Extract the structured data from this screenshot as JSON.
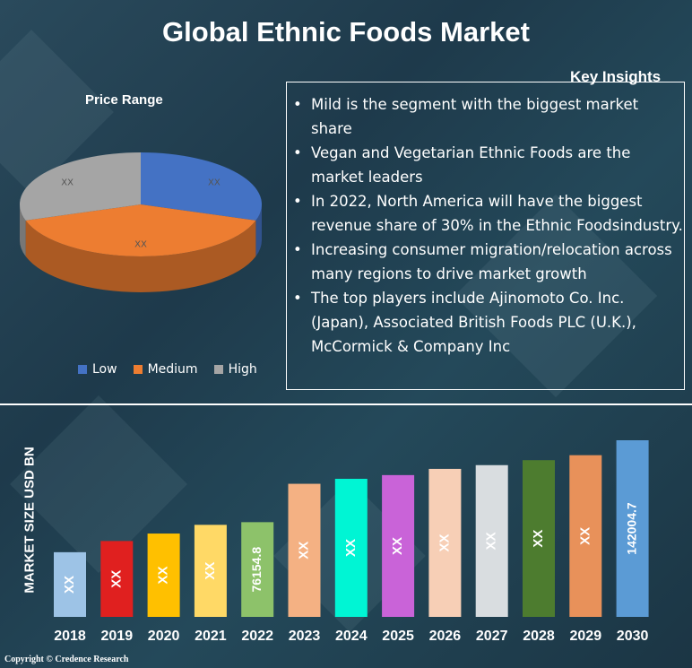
{
  "title": "Global Ethnic Foods Market",
  "copyright": "Copyright © Credence Research",
  "colors": {
    "low": "#4472c4",
    "medium": "#ed7d31",
    "high": "#a5a5a5"
  },
  "insights": {
    "title": "Key Insights",
    "items": [
      "Mild is the segment with the biggest market share",
      "Vegan and Vegetarian Ethnic Foods are the market leaders",
      "In 2022, North America will have the biggest revenue share of 30% in the Ethnic Foodsindustry.",
      "Increasing consumer migration/relocation across many regions to drive market growth",
      "The top players include Ajinomoto Co. Inc. (Japan), Associated British Foods PLC (U.K.), McCormick & Company Inc"
    ]
  },
  "chart_data": [
    {
      "type": "pie",
      "title": "Price Range",
      "legend_position": "bottom",
      "categories": [
        "Low",
        "Medium",
        "High"
      ],
      "values": [
        30,
        40,
        30
      ],
      "data_labels": [
        "XX",
        "XX",
        "XX"
      ],
      "colors": [
        "#4472c4",
        "#ed7d31",
        "#a5a5a5"
      ]
    },
    {
      "type": "bar",
      "title": "",
      "ylabel": "MARKET SIZE USD BN",
      "xlabel": "",
      "categories": [
        "2018",
        "2019",
        "2020",
        "2021",
        "2022",
        "2023",
        "2024",
        "2025",
        "2026",
        "2027",
        "2028",
        "2029",
        "2030"
      ],
      "values": [
        52000,
        61000,
        67000,
        74000,
        76154.8,
        107000,
        111000,
        114000,
        119000,
        122000,
        126000,
        130000,
        142004.7
      ],
      "data_labels": [
        "XX",
        "XX",
        "XX",
        "XX",
        "76154.8",
        "XX",
        "XX",
        "XX",
        "XX",
        "XX",
        "XX",
        "XX",
        "142004.7"
      ],
      "colors": [
        "#9dc3e6",
        "#e0201f",
        "#ffc000",
        "#ffd966",
        "#8dc26a",
        "#f4b183",
        "#00f5d4",
        "#c963d8",
        "#f7cfb6",
        "#d9dde0",
        "#4d7c2f",
        "#e8915a",
        "#5b9bd5"
      ],
      "ylim": [
        0,
        142004.7
      ],
      "grid": false
    }
  ]
}
